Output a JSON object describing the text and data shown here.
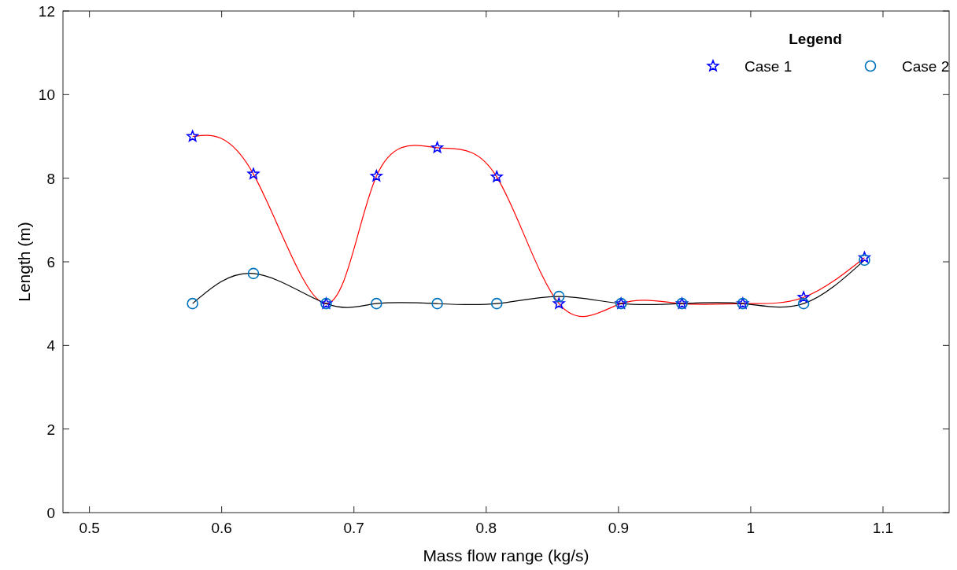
{
  "chart_data": {
    "type": "scatter",
    "xlabel": "Mass flow range (kg/s)",
    "ylabel": "Length (m)",
    "legend_title": "Legend",
    "legend": "top right",
    "grid": false,
    "x": [
      0.578,
      0.624,
      0.679,
      0.717,
      0.763,
      0.808,
      0.855,
      0.902,
      0.948,
      0.994,
      1.04,
      1.086
    ],
    "xlim": [
      0.48,
      1.15
    ],
    "xticks": [
      0.5,
      0.6,
      0.7,
      0.8,
      0.9,
      1,
      1.1
    ],
    "ylim": [
      0,
      12
    ],
    "yticks": [
      0,
      2,
      4,
      6,
      8,
      10,
      12
    ],
    "series": [
      {
        "type": "line",
        "color": "#ff0000",
        "marker": "none",
        "values": [
          9.0,
          8.1,
          5.0,
          8.05,
          8.73,
          8.03,
          5.0,
          5.0,
          5.0,
          5.0,
          5.15,
          6.1
        ]
      },
      {
        "type": "line",
        "color": "#000000",
        "marker": "none",
        "values": [
          5.0,
          5.72,
          5.0,
          5.0,
          5.0,
          5.0,
          5.17,
          5.0,
          5.0,
          5.0,
          5.0,
          6.04
        ]
      },
      {
        "name": "Case 1",
        "color": "#0000ff",
        "marker": "star",
        "values": [
          9.0,
          8.1,
          5.0,
          8.05,
          8.73,
          8.03,
          5.0,
          5.0,
          5.0,
          5.0,
          5.15,
          6.1
        ]
      },
      {
        "name": "Case 2",
        "color": "#0072bd",
        "marker": "circle",
        "values": [
          5.0,
          5.72,
          5.0,
          5.0,
          5.0,
          5.0,
          5.17,
          5.0,
          5.0,
          5.0,
          5.0,
          6.04
        ]
      }
    ]
  }
}
